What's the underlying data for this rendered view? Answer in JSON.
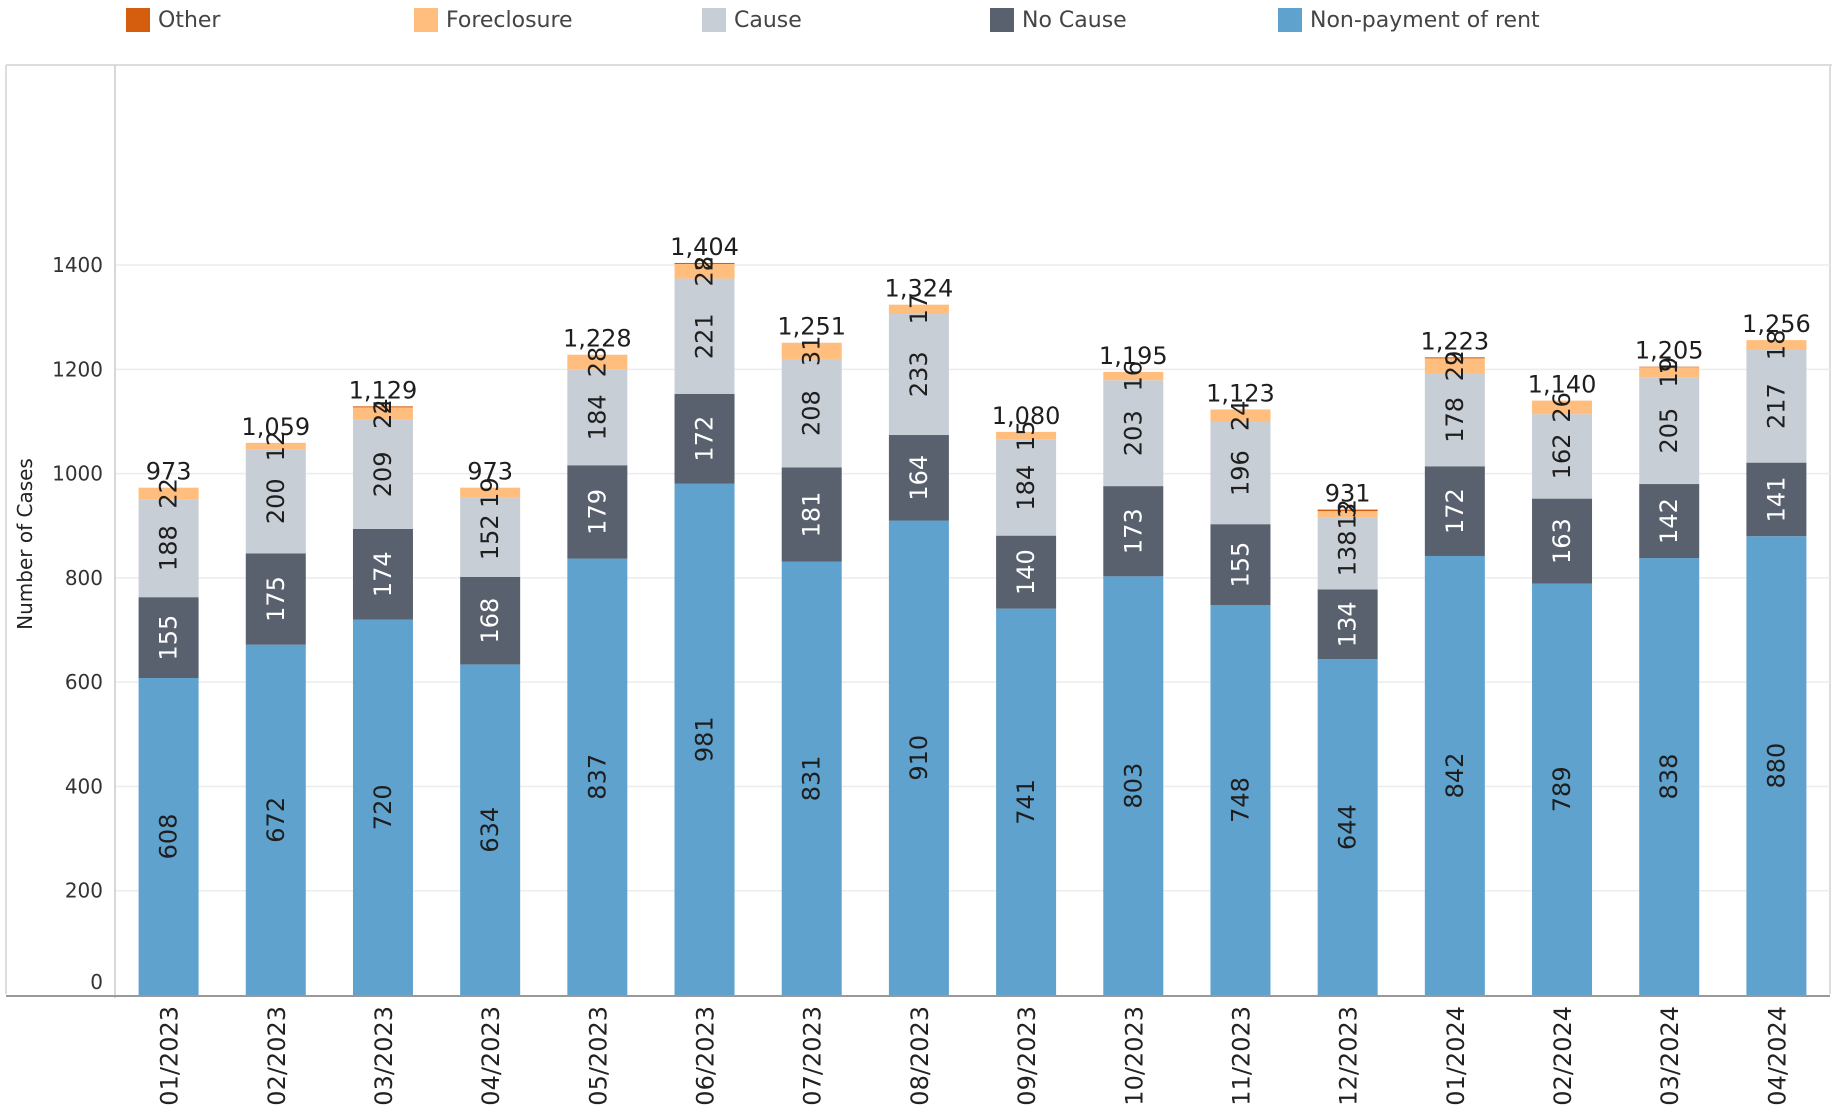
{
  "legend": [
    {
      "name": "Other",
      "color": "#D55E0E"
    },
    {
      "name": "Foreclosure",
      "color": "#FFBE7D"
    },
    {
      "name": "Cause",
      "color": "#C8CED6"
    },
    {
      "name": "No Cause",
      "color": "#59616E"
    },
    {
      "name": "Non-payment of rent",
      "color": "#5FA2CE"
    }
  ],
  "chart_data": {
    "type": "bar",
    "stacked": true,
    "ylabel": "Number of Cases",
    "xlabel": "",
    "ylim": [
      0,
      1500
    ],
    "yticks": [
      0,
      200,
      400,
      600,
      800,
      1000,
      1200,
      1400
    ],
    "grid": true,
    "legend_position": "top",
    "categories": [
      "01/2023",
      "02/2023",
      "03/2023",
      "04/2023",
      "05/2023",
      "06/2023",
      "07/2023",
      "08/2023",
      "09/2023",
      "10/2023",
      "11/2023",
      "12/2023",
      "01/2024",
      "02/2024",
      "03/2024",
      "04/2024"
    ],
    "series": [
      {
        "name": "Non-payment of rent",
        "color": "#5FA2CE",
        "values": [
          608,
          672,
          720,
          634,
          837,
          981,
          831,
          910,
          741,
          803,
          748,
          644,
          842,
          789,
          838,
          880
        ]
      },
      {
        "name": "No Cause",
        "color": "#59616E",
        "values": [
          155,
          175,
          174,
          168,
          179,
          172,
          181,
          164,
          140,
          173,
          155,
          134,
          172,
          163,
          142,
          141
        ]
      },
      {
        "name": "Cause",
        "color": "#C8CED6",
        "values": [
          188,
          200,
          209,
          152,
          184,
          221,
          208,
          233,
          184,
          203,
          196,
          138,
          178,
          162,
          205,
          217
        ]
      },
      {
        "name": "Foreclosure",
        "color": "#FFBE7D",
        "values": [
          22,
          12,
          24,
          19,
          28,
          28,
          31,
          17,
          15,
          16,
          24,
          12,
          29,
          26,
          19,
          18
        ]
      },
      {
        "name": "Other",
        "color": "#D55E0E",
        "values": [
          0,
          0,
          2,
          0,
          0,
          2,
          0,
          0,
          0,
          0,
          0,
          3,
          2,
          0,
          1,
          0
        ]
      }
    ],
    "totals": [
      "973",
      "1,059",
      "1,129",
      "973",
      "1,228",
      "1,404",
      "1,251",
      "1,324",
      "1,080",
      "1,195",
      "1,123",
      "931",
      "1,223",
      "1,140",
      "1,205",
      "1,256"
    ]
  }
}
